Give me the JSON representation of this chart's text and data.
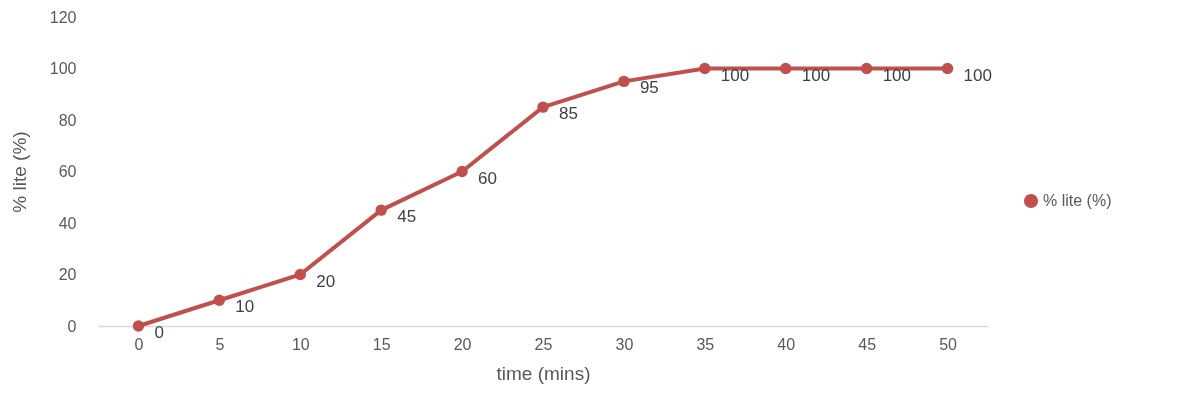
{
  "chart_data": {
    "type": "line",
    "xlabel": "time (mins)",
    "ylabel": "% lite (%)",
    "categories": [
      "0",
      "5",
      "10",
      "15",
      "20",
      "25",
      "30",
      "35",
      "40",
      "45",
      "50"
    ],
    "series": [
      {
        "name": "% lite (%)",
        "color": "#c0504d",
        "values": [
          0,
          10,
          20,
          45,
          60,
          85,
          95,
          100,
          100,
          100,
          100
        ]
      }
    ],
    "ylim": [
      0,
      120
    ],
    "yticks": [
      0,
      20,
      40,
      60,
      80,
      100,
      120
    ],
    "grid": false,
    "legend": "right",
    "marker": "circle",
    "line_style": "solid",
    "data_labels": true
  }
}
